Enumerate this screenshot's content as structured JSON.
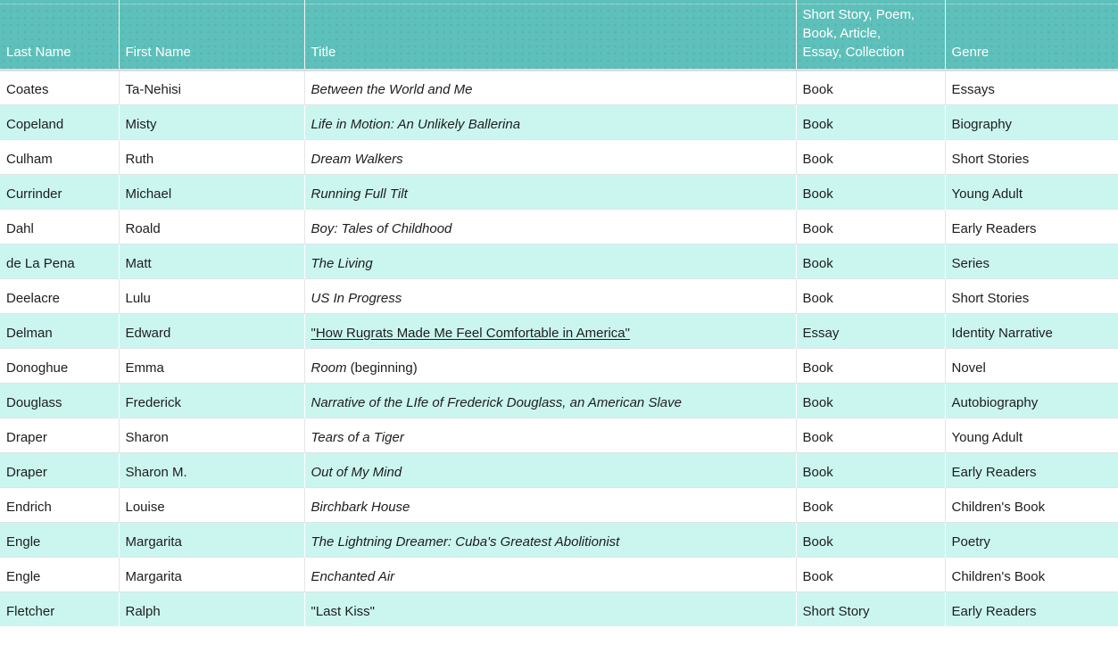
{
  "colors": {
    "header_background": "#5EC0BA",
    "band_background": "#CBF6F0",
    "header_text": "#FFFFFF",
    "cell_text": "#1D1D1D"
  },
  "table": {
    "columns": [
      {
        "key": "last_name",
        "label": "Last Name"
      },
      {
        "key": "first_name",
        "label": "First Name"
      },
      {
        "key": "title",
        "label": "Title"
      },
      {
        "key": "type",
        "label": "Short Story, Poem,\nBook, Article,\nEssay, Collection"
      },
      {
        "key": "genre",
        "label": "Genre"
      }
    ],
    "rows": [
      {
        "last_name": "Coates",
        "first_name": "Ta-Nehisi",
        "title": [
          {
            "text": "Between the World and Me",
            "style": "italic"
          }
        ],
        "type": "Book",
        "genre": "Essays"
      },
      {
        "last_name": "Copeland",
        "first_name": "Misty",
        "title": [
          {
            "text": "Life in Motion: An Unlikely Ballerina",
            "style": "italic"
          }
        ],
        "type": "Book",
        "genre": "Biography"
      },
      {
        "last_name": "Culham",
        "first_name": "Ruth",
        "title": [
          {
            "text": "Dream Walkers",
            "style": "italic"
          }
        ],
        "type": "Book",
        "genre": "Short Stories"
      },
      {
        "last_name": "Currinder",
        "first_name": "Michael",
        "title": [
          {
            "text": "Running Full Tilt",
            "style": "italic"
          }
        ],
        "type": "Book",
        "genre": "Young Adult"
      },
      {
        "last_name": "Dahl",
        "first_name": "Roald",
        "title": [
          {
            "text": "Boy: Tales of Childhood",
            "style": "italic"
          }
        ],
        "type": "Book",
        "genre": "Early Readers"
      },
      {
        "last_name": "de La Pena",
        "first_name": "Matt",
        "title": [
          {
            "text": "The Living",
            "style": "italic"
          }
        ],
        "type": "Book",
        "genre": "Series"
      },
      {
        "last_name": "Deelacre",
        "first_name": "Lulu",
        "title": [
          {
            "text": "US In Progress",
            "style": "italic"
          }
        ],
        "type": "Book",
        "genre": "Short Stories"
      },
      {
        "last_name": "Delman",
        "first_name": "Edward",
        "title": [
          {
            "text": "\"How Rugrats Made Me Feel Comfortable in America\"",
            "style": "underline"
          }
        ],
        "type": "Essay",
        "genre": "Identity Narrative"
      },
      {
        "last_name": "Donoghue",
        "first_name": "Emma",
        "title": [
          {
            "text": "Room",
            "style": "italic"
          },
          {
            "text": " (beginning)",
            "style": "plain"
          }
        ],
        "type": "Book",
        "genre": "Novel"
      },
      {
        "last_name": "Douglass",
        "first_name": "Frederick",
        "title": [
          {
            "text": "Narrative of the LIfe of Frederick Douglass, an American Slave",
            "style": "italic"
          }
        ],
        "type": "Book",
        "genre": "Autobiography"
      },
      {
        "last_name": "Draper",
        "first_name": "Sharon",
        "title": [
          {
            "text": "Tears of a Tiger",
            "style": "italic"
          }
        ],
        "type": "Book",
        "genre": "Young Adult"
      },
      {
        "last_name": "Draper",
        "first_name": "Sharon M.",
        "title": [
          {
            "text": "Out of My Mind",
            "style": "italic"
          }
        ],
        "type": "Book",
        "genre": "Early Readers"
      },
      {
        "last_name": "Endrich",
        "first_name": "Louise",
        "title": [
          {
            "text": "Birchbark House",
            "style": "italic"
          }
        ],
        "type": "Book",
        "genre": "Children's Book"
      },
      {
        "last_name": "Engle",
        "first_name": "Margarita",
        "title": [
          {
            "text": "The Lightning Dreamer: Cuba's Greatest Abolitionist",
            "style": "italic"
          }
        ],
        "type": "Book",
        "genre": "Poetry"
      },
      {
        "last_name": "Engle",
        "first_name": "Margarita",
        "title": [
          {
            "text": "Enchanted Air",
            "style": "italic"
          }
        ],
        "type": "Book",
        "genre": "Children's Book"
      },
      {
        "last_name": "Fletcher",
        "first_name": "Ralph",
        "title": [
          {
            "text": "\"Last Kiss\"",
            "style": "plain"
          }
        ],
        "type": "Short Story",
        "genre": "Early Readers"
      }
    ]
  }
}
